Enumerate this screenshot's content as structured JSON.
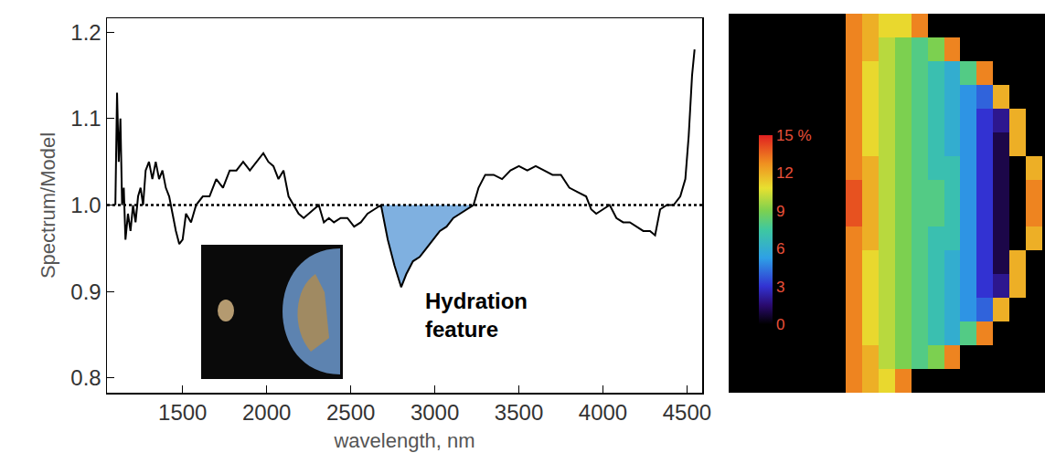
{
  "chart_data": [
    {
      "type": "line",
      "x_label": "wavelength, nm",
      "y_label": "Spectrum/Model",
      "x": [
        1100,
        1110,
        1120,
        1130,
        1140,
        1150,
        1160,
        1175,
        1190,
        1205,
        1220,
        1235,
        1250,
        1265,
        1280,
        1300,
        1320,
        1340,
        1360,
        1380,
        1400,
        1420,
        1440,
        1460,
        1480,
        1500,
        1520,
        1550,
        1580,
        1620,
        1660,
        1700,
        1740,
        1780,
        1820,
        1860,
        1900,
        1940,
        1980,
        2010,
        2040,
        2070,
        2100,
        2130,
        2160,
        2190,
        2220,
        2250,
        2280,
        2310,
        2340,
        2370,
        2400,
        2440,
        2480,
        2520,
        2560,
        2600,
        2640,
        2680,
        2720,
        2760,
        2800,
        2830,
        2870,
        2910,
        2950,
        2990,
        3030,
        3070,
        3110,
        3150,
        3190,
        3230,
        3260,
        3300,
        3350,
        3400,
        3450,
        3500,
        3550,
        3600,
        3650,
        3700,
        3750,
        3800,
        3850,
        3900,
        3930,
        3960,
        4000,
        4040,
        4080,
        4120,
        4160,
        4200,
        4240,
        4280,
        4310,
        4340,
        4380,
        4420,
        4460,
        4490,
        4510,
        4530,
        4545
      ],
      "values": [
        1.0,
        1.13,
        1.05,
        1.1,
        1.0,
        1.02,
        0.96,
        0.99,
        0.97,
        1.0,
        0.98,
        1.01,
        1.02,
        1.0,
        1.04,
        1.05,
        1.03,
        1.05,
        1.03,
        1.04,
        1.02,
        1.01,
        0.99,
        0.97,
        0.955,
        0.96,
        0.99,
        0.98,
        1.0,
        1.01,
        1.01,
        1.03,
        1.02,
        1.04,
        1.04,
        1.05,
        1.04,
        1.05,
        1.06,
        1.05,
        1.045,
        1.03,
        1.04,
        1.01,
        1.0,
        0.99,
        0.985,
        0.99,
        0.995,
        1.0,
        0.98,
        0.985,
        0.98,
        0.985,
        0.985,
        0.975,
        0.98,
        0.99,
        0.995,
        1.0,
        0.96,
        0.93,
        0.905,
        0.92,
        0.935,
        0.94,
        0.95,
        0.96,
        0.97,
        0.975,
        0.985,
        0.99,
        0.995,
        1.0,
        1.02,
        1.035,
        1.035,
        1.03,
        1.04,
        1.045,
        1.04,
        1.045,
        1.04,
        1.035,
        1.035,
        1.02,
        1.015,
        1.01,
        0.995,
        0.99,
        0.995,
        1.0,
        0.985,
        0.98,
        0.98,
        0.975,
        0.97,
        0.97,
        0.965,
        0.995,
        1.0,
        1.0,
        1.01,
        1.03,
        1.08,
        1.15,
        1.18
      ],
      "color": "#000000",
      "xlim": [
        1050,
        4590
      ],
      "xticks": [
        1500,
        2000,
        2500,
        3000,
        3500,
        4000,
        4500
      ],
      "ylim": [
        0.783,
        1.216
      ],
      "yticks": [
        0.8,
        0.9,
        {
          "value": 1,
          "label": "1.0"
        },
        1.1,
        1.2
      ],
      "grid": false,
      "reference_line": {
        "y": 1,
        "line_style": "dotted"
      },
      "shaded": {
        "x": [
          2680,
          3230
        ],
        "color": "#7fb0e0"
      },
      "annotations": [
        {
          "text": "Hydration feature",
          "x": 2929,
          "y": 0.873
        }
      ]
    },
    {
      "type": "heatmap",
      "cells": [
        [
          13,
          12,
          11,
          11,
          13,
          null,
          null,
          null,
          null,
          null,
          null,
          null
        ],
        [
          13,
          12,
          10,
          9,
          8,
          9,
          13,
          null,
          null,
          null,
          null,
          null
        ],
        [
          13,
          11,
          10,
          9,
          8,
          7,
          6,
          8,
          13,
          null,
          null,
          null
        ],
        [
          13,
          11,
          10,
          9,
          8,
          7,
          6,
          5,
          4,
          12,
          null,
          null
        ],
        [
          13,
          11,
          10,
          9,
          8,
          7,
          6,
          5,
          3,
          2,
          12,
          null
        ],
        [
          13,
          11,
          10,
          9,
          8,
          7,
          6,
          5,
          3,
          1,
          12,
          null
        ],
        [
          13,
          12,
          10,
          9,
          8,
          7,
          7,
          5,
          3,
          1,
          0,
          12
        ],
        [
          14,
          12,
          10,
          9,
          8,
          8,
          7,
          5,
          3,
          1,
          0,
          13
        ],
        [
          14,
          12,
          10,
          9,
          8,
          8,
          7,
          5,
          3,
          1,
          0,
          13
        ],
        [
          13,
          12,
          10,
          9,
          8,
          7,
          7,
          5,
          3,
          1,
          0,
          12
        ],
        [
          13,
          11,
          10,
          9,
          8,
          7,
          6,
          5,
          3,
          1,
          12,
          null
        ],
        [
          13,
          11,
          10,
          9,
          8,
          7,
          6,
          5,
          3,
          2,
          12,
          null
        ],
        [
          13,
          11,
          10,
          9,
          8,
          7,
          6,
          5,
          4,
          12,
          null,
          null
        ],
        [
          13,
          11,
          10,
          9,
          8,
          7,
          6,
          8,
          13,
          null,
          null,
          null
        ],
        [
          13,
          12,
          10,
          9,
          8,
          9,
          13,
          null,
          null,
          null,
          null,
          null
        ],
        [
          13,
          12,
          11,
          13,
          null,
          null,
          null,
          null,
          null,
          null,
          null,
          null
        ]
      ],
      "zlim": [
        0,
        15
      ],
      "zticks": [
        0,
        3,
        6,
        9,
        12,
        {
          "value": 15,
          "label": "15 %"
        }
      ],
      "tick_labels": false
    }
  ]
}
